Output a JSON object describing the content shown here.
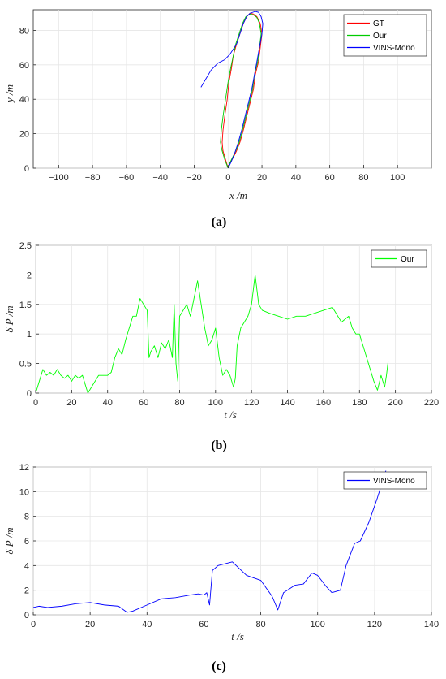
{
  "chart_data": [
    {
      "type": "line",
      "caption": "(a)",
      "xlabel": "x /m",
      "ylabel": "y /m",
      "xlim": [
        -115,
        120
      ],
      "ylim": [
        0,
        92
      ],
      "xticks": [
        -100,
        -80,
        -60,
        -40,
        -20,
        0,
        20,
        40,
        60,
        80,
        100
      ],
      "yticks": [
        0,
        20,
        40,
        60,
        80
      ],
      "grid": true,
      "legend": "top-right",
      "series": [
        {
          "name": "GT",
          "color": "#ff0000",
          "x": [
            0,
            -1.5,
            -3,
            -3.5,
            -3,
            -2,
            -0.5,
            0.5,
            2,
            3,
            5,
            7,
            9,
            11,
            13,
            15,
            17,
            19,
            20,
            19,
            18,
            16,
            15,
            13,
            11,
            9,
            7,
            5,
            3,
            1,
            0
          ],
          "y": [
            0,
            5,
            10,
            15,
            22,
            30,
            40,
            50,
            58,
            65,
            72,
            78,
            84,
            88,
            90,
            89.5,
            88,
            84,
            78,
            70,
            62,
            54,
            46,
            38,
            30,
            22,
            15,
            10,
            6,
            3,
            0
          ]
        },
        {
          "name": "Our",
          "color": "#00cc00",
          "x": [
            0,
            -2,
            -3.5,
            -4.5,
            -4,
            -3,
            -1.5,
            0,
            1.5,
            3,
            4.5,
            6.5,
            8.5,
            10.5,
            13,
            15,
            17,
            18.5,
            19.5,
            18.5,
            17.5,
            15.5,
            14.5,
            12.5,
            10.5,
            8.5,
            6.5,
            4.5,
            2.5,
            1,
            0
          ],
          "y": [
            0,
            5,
            10,
            15,
            22,
            30,
            40,
            50,
            58,
            65,
            72,
            78,
            84,
            88,
            89.5,
            89,
            87.5,
            84,
            78,
            70,
            62,
            54,
            46,
            38,
            30,
            22,
            15,
            10,
            6,
            3,
            0
          ]
        },
        {
          "name": "VINS-Mono",
          "color": "#0000ff",
          "x": [
            0,
            2,
            4,
            6,
            8,
            10,
            12,
            14,
            15.5,
            17,
            18.5,
            20,
            20.5,
            19.5,
            18,
            16,
            13,
            11,
            9,
            7,
            5,
            3,
            1,
            -2,
            -6,
            -10,
            -13,
            -16
          ],
          "y": [
            0,
            4,
            9,
            15,
            22,
            30,
            38,
            46,
            54,
            62,
            70,
            78,
            84,
            88,
            90.5,
            91,
            90,
            88,
            84,
            78,
            72,
            69,
            66,
            63,
            61,
            57,
            52,
            47
          ]
        }
      ]
    },
    {
      "type": "line",
      "caption": "(b)",
      "xlabel": "t  /s",
      "ylabel": "δ P /m",
      "xlim": [
        0,
        220
      ],
      "ylim": [
        0,
        2.5
      ],
      "xticks": [
        0,
        20,
        40,
        60,
        80,
        100,
        120,
        140,
        160,
        180,
        200,
        220
      ],
      "yticks": [
        0,
        0.5,
        1,
        1.5,
        2,
        2.5
      ],
      "grid": true,
      "legend": "top-right",
      "series": [
        {
          "name": "Our",
          "color": "#00ff00",
          "x": [
            0,
            2,
            4,
            6,
            8,
            10,
            12,
            14,
            16,
            18,
            20,
            22,
            24,
            26,
            27,
            28,
            29,
            30,
            35,
            40,
            42,
            44,
            46,
            48,
            50,
            52,
            54,
            56,
            58,
            60,
            62,
            63,
            64,
            66,
            68,
            70,
            72,
            74,
            76,
            77,
            78,
            79,
            80,
            82,
            84,
            86,
            88,
            90,
            92,
            94,
            96,
            98,
            100,
            102,
            104,
            106,
            108,
            110,
            111,
            112,
            114,
            116,
            118,
            120,
            122,
            124,
            126,
            130,
            135,
            140,
            145,
            150,
            155,
            160,
            165,
            170,
            172,
            174,
            176,
            178,
            180,
            182,
            184,
            186,
            188,
            190,
            192,
            194,
            195,
            196
          ],
          "y": [
            0,
            0.2,
            0.4,
            0.3,
            0.35,
            0.3,
            0.4,
            0.3,
            0.25,
            0.3,
            0.2,
            0.3,
            0.25,
            0.3,
            0.2,
            0.1,
            0,
            0.05,
            0.3,
            0.3,
            0.35,
            0.6,
            0.75,
            0.65,
            0.9,
            1.1,
            1.3,
            1.3,
            1.6,
            1.5,
            1.4,
            0.6,
            0.7,
            0.8,
            0.6,
            0.85,
            0.75,
            0.9,
            0.6,
            1.5,
            0.5,
            0.2,
            1.3,
            1.4,
            1.5,
            1.3,
            1.6,
            1.9,
            1.5,
            1.1,
            0.8,
            0.9,
            1.1,
            0.6,
            0.3,
            0.4,
            0.3,
            0.1,
            0.25,
            0.8,
            1.1,
            1.2,
            1.3,
            1.5,
            2.0,
            1.5,
            1.4,
            1.35,
            1.3,
            1.25,
            1.3,
            1.3,
            1.35,
            1.4,
            1.45,
            1.2,
            1.25,
            1.3,
            1.1,
            1.0,
            1.0,
            0.8,
            0.6,
            0.4,
            0.2,
            0.05,
            0.3,
            0.1,
            0.3,
            0.55
          ]
        }
      ]
    },
    {
      "type": "line",
      "caption": "(c)",
      "xlabel": "t  /s",
      "ylabel": "δ P /m",
      "xlim": [
        0,
        140
      ],
      "ylim": [
        0,
        12
      ],
      "xticks": [
        0,
        20,
        40,
        60,
        80,
        100,
        120,
        140
      ],
      "yticks": [
        0,
        2,
        4,
        6,
        8,
        10,
        12
      ],
      "grid": true,
      "legend": "top-right",
      "series": [
        {
          "name": "VINS-Mono",
          "color": "#0000ff",
          "x": [
            0,
            2,
            5,
            10,
            15,
            20,
            25,
            30,
            33,
            35,
            40,
            45,
            50,
            55,
            58,
            60,
            61,
            62,
            63,
            65,
            70,
            75,
            80,
            84,
            86,
            88,
            92,
            95,
            98,
            100,
            103,
            105,
            108,
            110,
            113,
            115,
            118,
            121,
            124
          ],
          "y": [
            0.6,
            0.7,
            0.6,
            0.7,
            0.9,
            1.0,
            0.8,
            0.7,
            0.2,
            0.3,
            0.8,
            1.3,
            1.4,
            1.6,
            1.7,
            1.6,
            1.8,
            0.8,
            3.6,
            4.0,
            4.3,
            3.2,
            2.8,
            1.5,
            0.4,
            1.8,
            2.4,
            2.5,
            3.4,
            3.2,
            2.3,
            1.8,
            2.0,
            4.0,
            5.8,
            6.0,
            7.5,
            9.5,
            11.7
          ]
        }
      ]
    }
  ]
}
